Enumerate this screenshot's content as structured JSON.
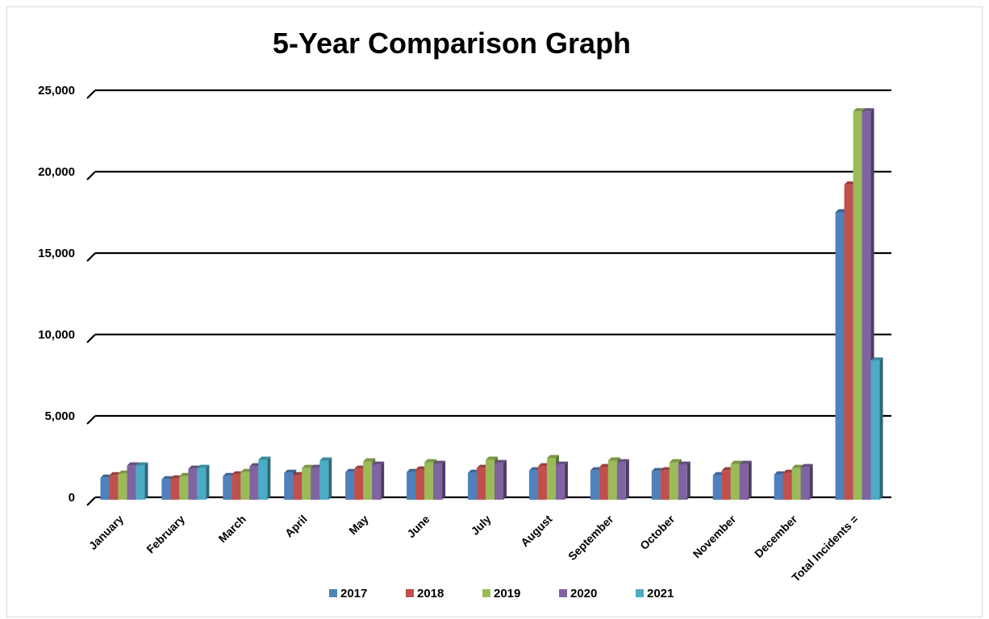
{
  "chart_data": {
    "type": "bar",
    "title": "5-Year Comparison Graph",
    "xlabel": "",
    "ylabel": "",
    "ylim": [
      0,
      25000
    ],
    "yticks": [
      0,
      5000,
      10000,
      15000,
      20000,
      25000
    ],
    "ytick_labels": [
      "0",
      "5,000",
      "10,000",
      "15,000",
      "20,000",
      "25,000"
    ],
    "grid": true,
    "legend_position": "bottom",
    "categories": [
      "January",
      "February",
      "March",
      "April",
      "May",
      "June",
      "July",
      "August",
      "September",
      "October",
      "November",
      "December",
      "Total Incidents ="
    ],
    "series": [
      {
        "name": "2017",
        "color": "#4F81BD",
        "values": [
          1200,
          1100,
          1300,
          1500,
          1550,
          1550,
          1500,
          1650,
          1650,
          1600,
          1350,
          1400,
          17500
        ]
      },
      {
        "name": "2018",
        "color": "#C0504D",
        "values": [
          1350,
          1150,
          1400,
          1350,
          1750,
          1700,
          1800,
          1900,
          1850,
          1650,
          1650,
          1500,
          19200
        ]
      },
      {
        "name": "2019",
        "color": "#9BBB59",
        "values": [
          1450,
          1300,
          1550,
          1800,
          2200,
          2150,
          2300,
          2400,
          2250,
          2150,
          2050,
          1800,
          23700
        ]
      },
      {
        "name": "2020",
        "color": "#8064A2",
        "values": [
          1950,
          1750,
          1900,
          1800,
          2000,
          2050,
          2100,
          2000,
          2150,
          2000,
          2050,
          1850,
          23700
        ]
      },
      {
        "name": "2021",
        "color": "#4BACC6",
        "values": [
          1950,
          1800,
          2300,
          2250,
          null,
          null,
          null,
          null,
          null,
          null,
          null,
          null,
          8400
        ]
      }
    ]
  }
}
